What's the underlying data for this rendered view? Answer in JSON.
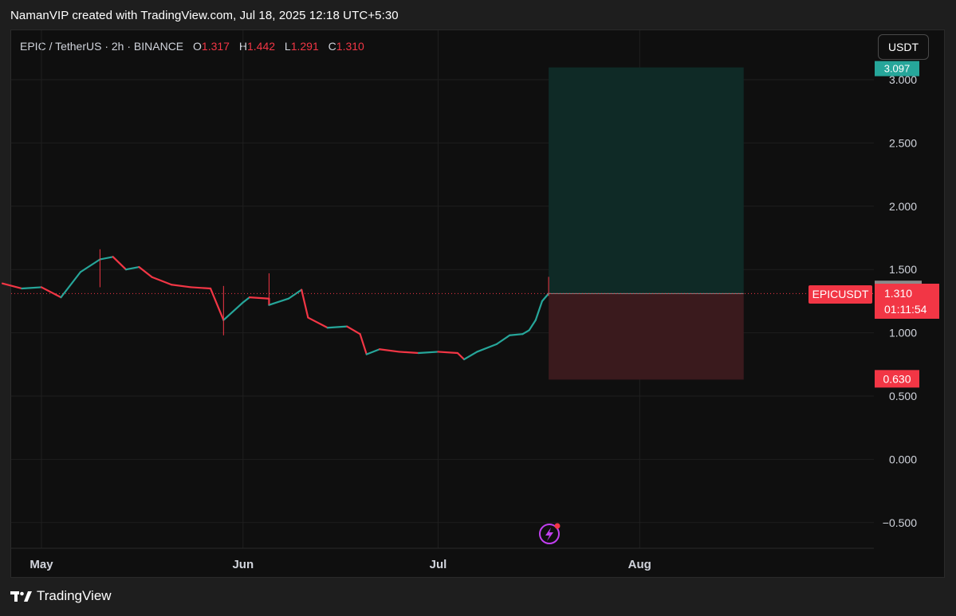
{
  "caption": "NamanVIP created with TradingView.com, Jul 18, 2025 12:18 UTC+5:30",
  "header": {
    "symbol": "EPIC / TetherUS · 2h · BINANCE",
    "open_key": "O",
    "open": "1.317",
    "high_key": "H",
    "high": "1.442",
    "low_key": "L",
    "low": "1.291",
    "close_key": "C",
    "close": "1.310"
  },
  "currency_button": "USDT",
  "brand": "TradingView",
  "colors": {
    "up": "#26a69a",
    "down": "#f23645",
    "target_zone": "#0f2a26",
    "stop_zone": "#3a1a1d",
    "background": "#0f0f0f"
  },
  "chart_data": {
    "type": "candlestick",
    "symbol": "EPICUSDT",
    "ylim": [
      -0.6,
      3.12
    ],
    "y_ticks": [
      "3.000",
      "2.500",
      "2.000",
      "1.000",
      "0.500",
      "0.000",
      "−0.500"
    ],
    "x_tick_labels": [
      "May",
      "Jun",
      "Jul",
      "Aug"
    ],
    "x_tick_dates": [
      "2025-05-01",
      "2025-06-01",
      "2025-07-01",
      "2025-08-01"
    ],
    "grid": true,
    "series": [
      {
        "dates": [
          "2025-04-25",
          "2025-04-28",
          "2025-05-01",
          "2025-05-04",
          "2025-05-07",
          "2025-05-10",
          "2025-05-12",
          "2025-05-14",
          "2025-05-16",
          "2025-05-18",
          "2025-05-21",
          "2025-05-24",
          "2025-05-27",
          "2025-05-29",
          "2025-06-01",
          "2025-06-02",
          "2025-06-05",
          "2025-06-05",
          "2025-06-08",
          "2025-06-10",
          "2025-06-11",
          "2025-06-14",
          "2025-06-17",
          "2025-06-19",
          "2025-06-20",
          "2025-06-22",
          "2025-06-25",
          "2025-06-28",
          "2025-07-01",
          "2025-07-04",
          "2025-07-05",
          "2025-07-07",
          "2025-07-10",
          "2025-07-12",
          "2025-07-14",
          "2025-07-15",
          "2025-07-16",
          "2025-07-17",
          "2025-07-18"
        ],
        "closes": [
          1.39,
          1.35,
          1.36,
          1.28,
          1.48,
          1.58,
          1.6,
          1.5,
          1.52,
          1.44,
          1.38,
          1.36,
          1.35,
          1.1,
          1.24,
          1.28,
          1.27,
          1.22,
          1.27,
          1.34,
          1.12,
          1.04,
          1.05,
          0.99,
          0.83,
          0.87,
          0.85,
          0.84,
          0.85,
          0.84,
          0.79,
          0.85,
          0.91,
          0.98,
          0.99,
          1.02,
          1.1,
          1.25,
          1.31
        ]
      }
    ],
    "last_price_label": "EPICUSDT",
    "last_price": "1.310",
    "countdown": "01:11:54",
    "high_marker": "1.314",
    "long_position": {
      "start_date": "2025-07-18",
      "end_date": "2025-08-17",
      "entry": 1.31,
      "target": 3.097,
      "stop": 0.63,
      "target_label": "3.097",
      "stop_label": "0.630"
    },
    "partial_tick_label": "1.500"
  }
}
